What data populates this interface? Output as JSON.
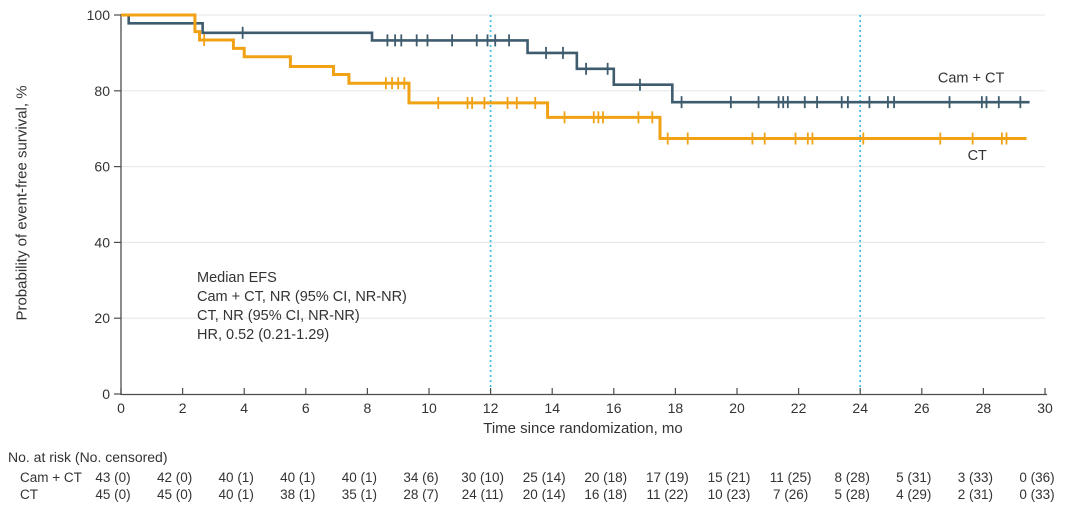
{
  "chart_data": {
    "type": "line",
    "subtype": "kaplan-meier-step",
    "title": "",
    "xlabel": "Time since randomization, mo",
    "ylabel": "Probability of event-free survival, %",
    "xlim": [
      0,
      30
    ],
    "ylim": [
      0,
      100
    ],
    "xticks": [
      0,
      2,
      4,
      6,
      8,
      10,
      12,
      14,
      16,
      18,
      20,
      22,
      24,
      26,
      28,
      30
    ],
    "yticks": [
      0,
      20,
      40,
      60,
      80,
      100
    ],
    "grid": "horizontal-light",
    "reference_lines_x": [
      12,
      24
    ],
    "series": [
      {
        "name": "Cam + CT",
        "color": "#3e5c6e",
        "steps": [
          [
            0,
            100
          ],
          [
            0.25,
            97.8
          ],
          [
            2.65,
            95.3
          ],
          [
            8.15,
            93.3
          ],
          [
            13.2,
            90.0
          ],
          [
            14.8,
            85.8
          ],
          [
            16.0,
            81.6
          ],
          [
            17.9,
            77.0
          ]
        ],
        "end": 29.5,
        "censors": [
          [
            3.95,
            95.3
          ],
          [
            8.65,
            93.3
          ],
          [
            8.9,
            93.3
          ],
          [
            9.1,
            93.3
          ],
          [
            9.6,
            93.3
          ],
          [
            9.95,
            93.3
          ],
          [
            10.75,
            93.3
          ],
          [
            11.55,
            93.3
          ],
          [
            11.9,
            93.3
          ],
          [
            12.15,
            93.3
          ],
          [
            12.6,
            93.3
          ],
          [
            13.8,
            90.0
          ],
          [
            14.35,
            90.0
          ],
          [
            15.1,
            85.8
          ],
          [
            15.8,
            85.8
          ],
          [
            16.85,
            81.6
          ],
          [
            18.2,
            77.0
          ],
          [
            19.8,
            77.0
          ],
          [
            20.7,
            77.0
          ],
          [
            21.35,
            77.0
          ],
          [
            21.5,
            77.0
          ],
          [
            21.65,
            77.0
          ],
          [
            22.2,
            77.0
          ],
          [
            22.6,
            77.0
          ],
          [
            23.4,
            77.0
          ],
          [
            23.6,
            77.0
          ],
          [
            24.3,
            77.0
          ],
          [
            24.9,
            77.0
          ],
          [
            25.1,
            77.0
          ],
          [
            26.9,
            77.0
          ],
          [
            27.95,
            77.0
          ],
          [
            28.1,
            77.0
          ],
          [
            28.5,
            77.0
          ],
          [
            29.2,
            77.0
          ]
        ],
        "label": {
          "text": "Cam + CT",
          "t": 27.6,
          "p": 83.5
        }
      },
      {
        "name": "CT",
        "color": "#f0a214",
        "steps": [
          [
            0,
            100
          ],
          [
            2.4,
            95.6
          ],
          [
            2.55,
            93.4
          ],
          [
            3.65,
            91.2
          ],
          [
            4.0,
            89.0
          ],
          [
            5.5,
            86.4
          ],
          [
            6.9,
            84.3
          ],
          [
            7.4,
            82.0
          ],
          [
            9.35,
            76.8
          ],
          [
            13.85,
            73.0
          ],
          [
            17.5,
            67.4
          ]
        ],
        "end": 29.4,
        "censors": [
          [
            2.7,
            93.4
          ],
          [
            8.6,
            82.0
          ],
          [
            8.8,
            82.0
          ],
          [
            9.0,
            82.0
          ],
          [
            9.2,
            82.0
          ],
          [
            10.3,
            76.8
          ],
          [
            11.25,
            76.8
          ],
          [
            11.4,
            76.8
          ],
          [
            11.8,
            76.8
          ],
          [
            12.55,
            76.8
          ],
          [
            12.85,
            76.8
          ],
          [
            13.45,
            76.8
          ],
          [
            14.4,
            73.0
          ],
          [
            15.35,
            73.0
          ],
          [
            15.5,
            73.0
          ],
          [
            15.65,
            73.0
          ],
          [
            16.8,
            73.0
          ],
          [
            17.25,
            73.0
          ],
          [
            17.75,
            67.4
          ],
          [
            18.4,
            67.4
          ],
          [
            20.5,
            67.4
          ],
          [
            20.9,
            67.4
          ],
          [
            21.9,
            67.4
          ],
          [
            22.3,
            67.4
          ],
          [
            22.45,
            67.4
          ],
          [
            24.1,
            67.4
          ],
          [
            26.6,
            67.4
          ],
          [
            27.65,
            67.4
          ],
          [
            28.6,
            67.4
          ],
          [
            28.75,
            67.4
          ]
        ],
        "label": {
          "text": "CT",
          "t": 27.8,
          "p": 63.0
        }
      }
    ],
    "annotation": {
      "lines": [
        "Median EFS",
        "Cam + CT, NR (95% CI, NR-NR)",
        "CT, NR (95% CI, NR-NR)",
        "HR, 0.52 (0.21-1.29)"
      ]
    }
  },
  "risk_table": {
    "header": "No. at risk (No. censored)",
    "time_points": [
      0,
      2,
      4,
      6,
      8,
      10,
      12,
      14,
      16,
      18,
      20,
      22,
      24,
      26,
      28,
      30
    ],
    "rows": [
      {
        "label": "Cam + CT",
        "values": [
          "43 (0)",
          "42 (0)",
          "40 (1)",
          "40 (1)",
          "40 (1)",
          "34 (6)",
          "30 (10)",
          "25 (14)",
          "20 (18)",
          "17 (19)",
          "15 (21)",
          "11 (25)",
          "8 (28)",
          "5 (31)",
          "3 (33)",
          "0 (36)"
        ]
      },
      {
        "label": "CT",
        "values": [
          "45 (0)",
          "45 (0)",
          "40 (1)",
          "38 (1)",
          "35 (1)",
          "28 (7)",
          "24 (11)",
          "20 (14)",
          "16 (18)",
          "11 (22)",
          "10 (23)",
          "7 (26)",
          "5 (28)",
          "4 (29)",
          "2 (31)",
          "0 (33)"
        ]
      }
    ]
  },
  "colors": {
    "cam_ct_line": "#3e5c6e",
    "ct_line": "#f0a214",
    "reference_line": "#3fbce8",
    "gridline": "#e9e9e9",
    "axis": "#4d4d4d",
    "text": "#333333"
  }
}
